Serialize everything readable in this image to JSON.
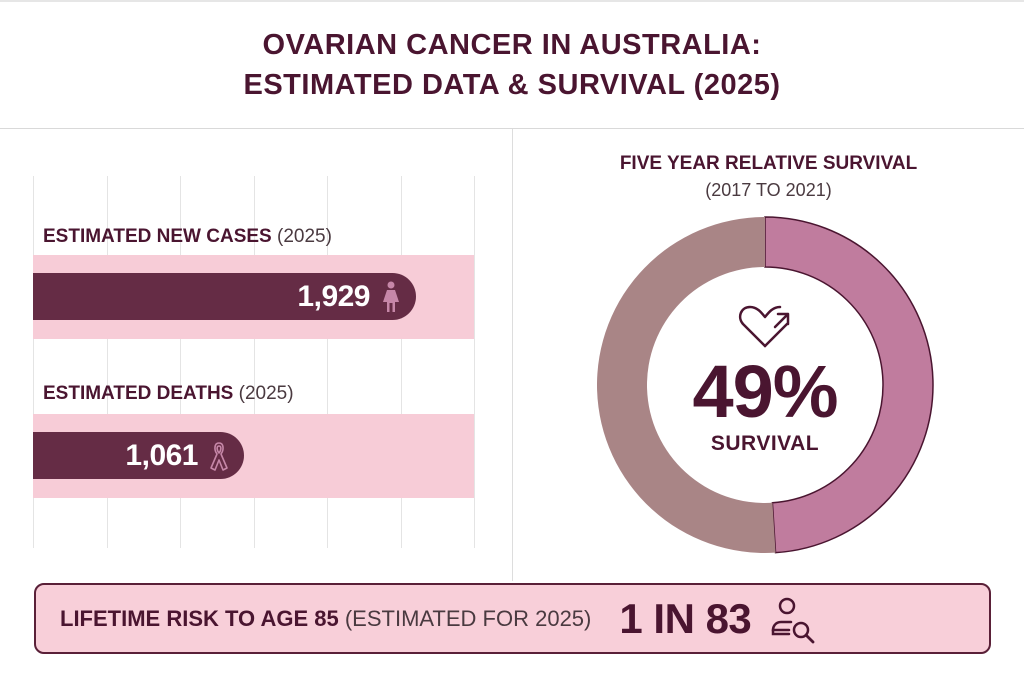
{
  "header": {
    "title_line1": "OVARIAN CANCER IN AUSTRALIA:",
    "title_line2": "ESTIMATED DATA & SURVIVAL (2025)"
  },
  "colors": {
    "primary": "#4a1530",
    "bar_fill": "#652c45",
    "bar_track": "#f7ccd7",
    "donut_survival": "#c07c9e",
    "donut_remainder": "#a98586",
    "risk_bg": "#f8cfd9",
    "icon_pink": "#c687a8"
  },
  "chart_data": [
    {
      "type": "bar",
      "orientation": "horizontal",
      "categories": [
        "Estimated New Cases (2025)",
        "Estimated Deaths (2025)"
      ],
      "values": [
        1929,
        1061
      ],
      "value_labels": [
        "1,929",
        "1,061"
      ],
      "xlim": [
        0,
        2000
      ],
      "grid": true,
      "bars": [
        {
          "label_strong": "ESTIMATED NEW CASES",
          "label_soft": "(2025)",
          "value": 1929,
          "value_label": "1,929",
          "icon": "female-person-icon"
        },
        {
          "label_strong": "ESTIMATED DEATHS",
          "label_soft": "(2025)",
          "value": 1061,
          "value_label": "1,061",
          "icon": "awareness-ribbon-icon"
        }
      ]
    },
    {
      "type": "pie",
      "variant": "donut",
      "title": "FIVE YEAR RELATIVE SURVIVAL",
      "subtitle": "(2017 TO 2021)",
      "slices": [
        {
          "name": "Survival",
          "value": 49
        },
        {
          "name": "Remainder",
          "value": 51
        }
      ],
      "center_value": "49%",
      "center_label": "SURVIVAL",
      "center_icon": "heart-arrow-icon"
    }
  ],
  "risk": {
    "label_strong": "LIFETIME RISK TO AGE 85",
    "label_soft": "(ESTIMATED FOR 2025)",
    "value": "1 IN 83",
    "icon": "person-search-icon"
  }
}
